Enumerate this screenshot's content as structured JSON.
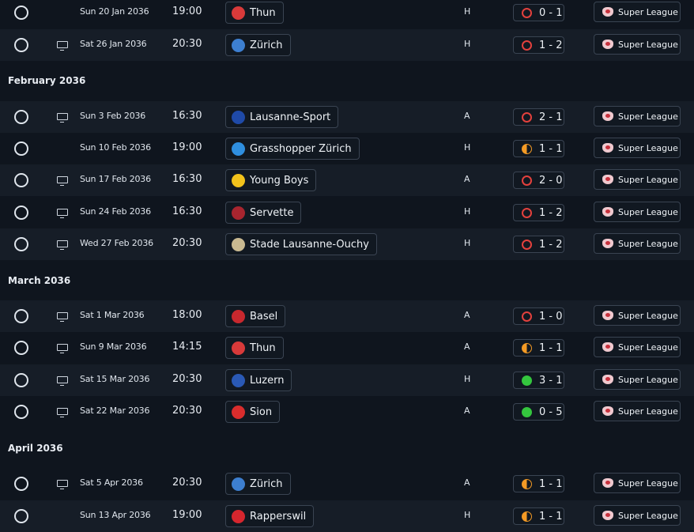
{
  "colors": {
    "background": "#0f151e",
    "row_alt": "#161d27",
    "loss": "#e3413d",
    "draw": "#f39a25",
    "win": "#34c63e"
  },
  "months": [
    {
      "label": "February 2036"
    },
    {
      "label": "March 2036"
    },
    {
      "label": "April 2036"
    }
  ],
  "fixtures": [
    {
      "date": "Sun 20 Jan 2036",
      "time": "19:00",
      "opponent": "Thun",
      "badge_icon": "thun-badge-icon",
      "badge_color": "#d83a3a",
      "venue": "H",
      "score": "0 - 1",
      "result": "loss",
      "competition": "Super League",
      "tv": false
    },
    {
      "date": "Sat 26 Jan 2036",
      "time": "20:30",
      "opponent": "Zürich",
      "badge_icon": "zurich-badge-icon",
      "badge_color": "#3d7fd0",
      "venue": "H",
      "score": "1 - 2",
      "result": "loss",
      "competition": "Super League",
      "tv": true
    },
    {
      "date": "Sun 3 Feb 2036",
      "time": "16:30",
      "opponent": "Lausanne-Sport",
      "badge_icon": "lausanne-sport-badge-icon",
      "badge_color": "#1f4aa8",
      "venue": "A",
      "score": "2 - 1",
      "result": "loss",
      "competition": "Super League",
      "tv": true
    },
    {
      "date": "Sun 10 Feb 2036",
      "time": "19:00",
      "opponent": "Grasshopper Zürich",
      "badge_icon": "grasshopper-badge-icon",
      "badge_color": "#2f8fe0",
      "venue": "H",
      "score": "1 - 1",
      "result": "draw",
      "competition": "Super League",
      "tv": false
    },
    {
      "date": "Sun 17 Feb 2036",
      "time": "16:30",
      "opponent": "Young Boys",
      "badge_icon": "young-boys-badge-icon",
      "badge_color": "#f2c21b",
      "venue": "A",
      "score": "2 - 0",
      "result": "loss",
      "competition": "Super League",
      "tv": true
    },
    {
      "date": "Sun 24 Feb 2036",
      "time": "16:30",
      "opponent": "Servette",
      "badge_icon": "servette-badge-icon",
      "badge_color": "#a8252f",
      "venue": "H",
      "score": "1 - 2",
      "result": "loss",
      "competition": "Super League",
      "tv": true
    },
    {
      "date": "Wed 27 Feb 2036",
      "time": "20:30",
      "opponent": "Stade Lausanne-Ouchy",
      "badge_icon": "slo-badge-icon",
      "badge_color": "#c9b991",
      "venue": "H",
      "score": "1 - 2",
      "result": "loss",
      "competition": "Super League",
      "tv": true
    },
    {
      "date": "Sat 1 Mar 2036",
      "time": "18:00",
      "opponent": "Basel",
      "badge_icon": "basel-badge-icon",
      "badge_color": "#c8282e",
      "venue": "A",
      "score": "1 - 0",
      "result": "loss",
      "competition": "Super League",
      "tv": true
    },
    {
      "date": "Sun 9 Mar 2036",
      "time": "14:15",
      "opponent": "Thun",
      "badge_icon": "thun-badge-icon",
      "badge_color": "#d83a3a",
      "venue": "A",
      "score": "1 - 1",
      "result": "draw",
      "competition": "Super League",
      "tv": true
    },
    {
      "date": "Sat 15 Mar 2036",
      "time": "20:30",
      "opponent": "Luzern",
      "badge_icon": "luzern-badge-icon",
      "badge_color": "#2a59b5",
      "venue": "H",
      "score": "3 - 1",
      "result": "win",
      "competition": "Super League",
      "tv": true
    },
    {
      "date": "Sat 22 Mar 2036",
      "time": "20:30",
      "opponent": "Sion",
      "badge_icon": "sion-badge-icon",
      "badge_color": "#d92d2d",
      "venue": "A",
      "score": "0 - 5",
      "result": "win",
      "competition": "Super League",
      "tv": true
    },
    {
      "date": "Sat 5 Apr 2036",
      "time": "20:30",
      "opponent": "Zürich",
      "badge_icon": "zurich-badge-icon",
      "badge_color": "#3d7fd0",
      "venue": "A",
      "score": "1 - 1",
      "result": "draw",
      "competition": "Super League",
      "tv": true
    },
    {
      "date": "Sun 13 Apr 2036",
      "time": "19:00",
      "opponent": "Rapperswil",
      "badge_icon": "rapperswil-badge-icon",
      "badge_color": "#d6262e",
      "venue": "H",
      "score": "1 - 1",
      "result": "draw",
      "competition": "Super League",
      "tv": false
    }
  ]
}
